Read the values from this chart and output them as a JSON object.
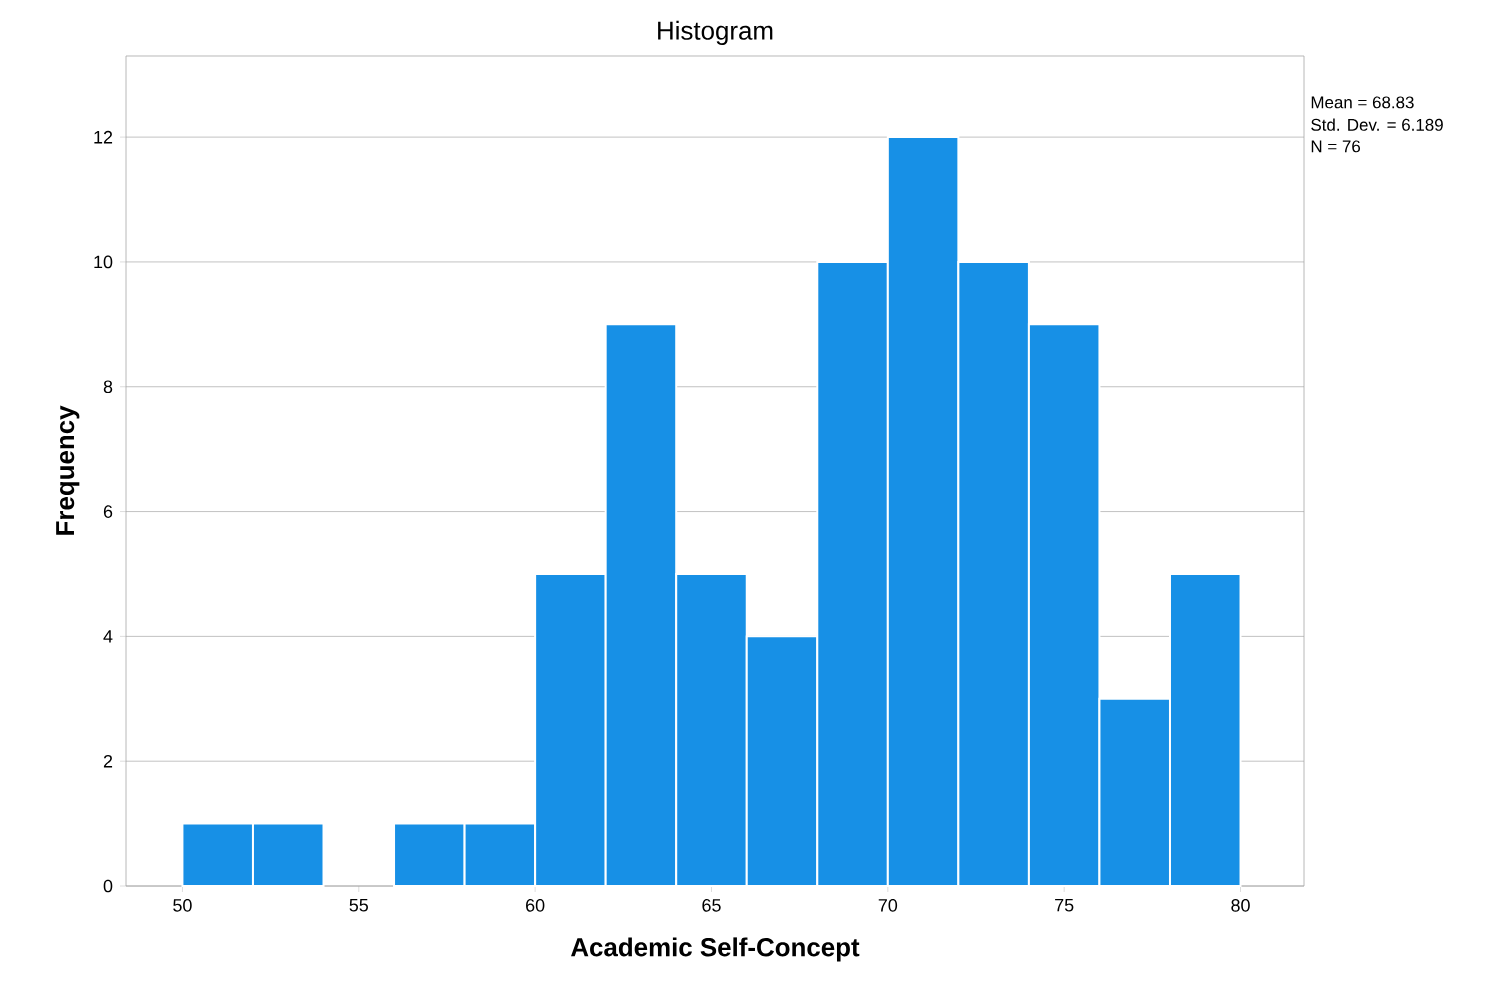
{
  "chart_data": {
    "type": "histogram",
    "title": "Histogram",
    "xlabel": "Academic Self-Concept",
    "ylabel": "Frequency",
    "bins": [
      50,
      52,
      54,
      56,
      58,
      60,
      62,
      64,
      66,
      68,
      70,
      72,
      74,
      76,
      78,
      80
    ],
    "values": [
      1,
      1,
      0,
      1,
      1,
      5,
      9,
      5,
      4,
      10,
      12,
      10,
      9,
      3,
      5
    ],
    "color": "#1790e6",
    "xlim": [
      48.4,
      81.8
    ],
    "ylim": [
      0,
      13.3
    ],
    "xticks": [
      50,
      55,
      60,
      65,
      70,
      75,
      80
    ],
    "yticks": [
      0,
      2,
      4,
      6,
      8,
      10,
      12
    ],
    "grid": "y",
    "annotations": [
      "Mean = 68.83",
      "Std. Dev. = 6.189",
      "N = 76"
    ]
  }
}
